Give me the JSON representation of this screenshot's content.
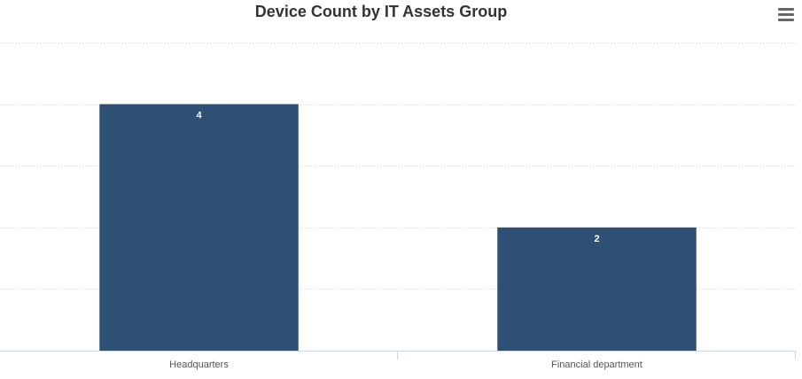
{
  "chart_data": {
    "type": "bar",
    "title": "Device Count by IT Assets Group",
    "categories": [
      "Headquarters",
      "Financial department"
    ],
    "values": [
      4,
      2
    ],
    "ylim": [
      0,
      5
    ],
    "grid": true,
    "data_labels": true,
    "bar_color": "#2e5074"
  },
  "toolbar": {
    "menu_icon": "hamburger-menu-icon"
  }
}
